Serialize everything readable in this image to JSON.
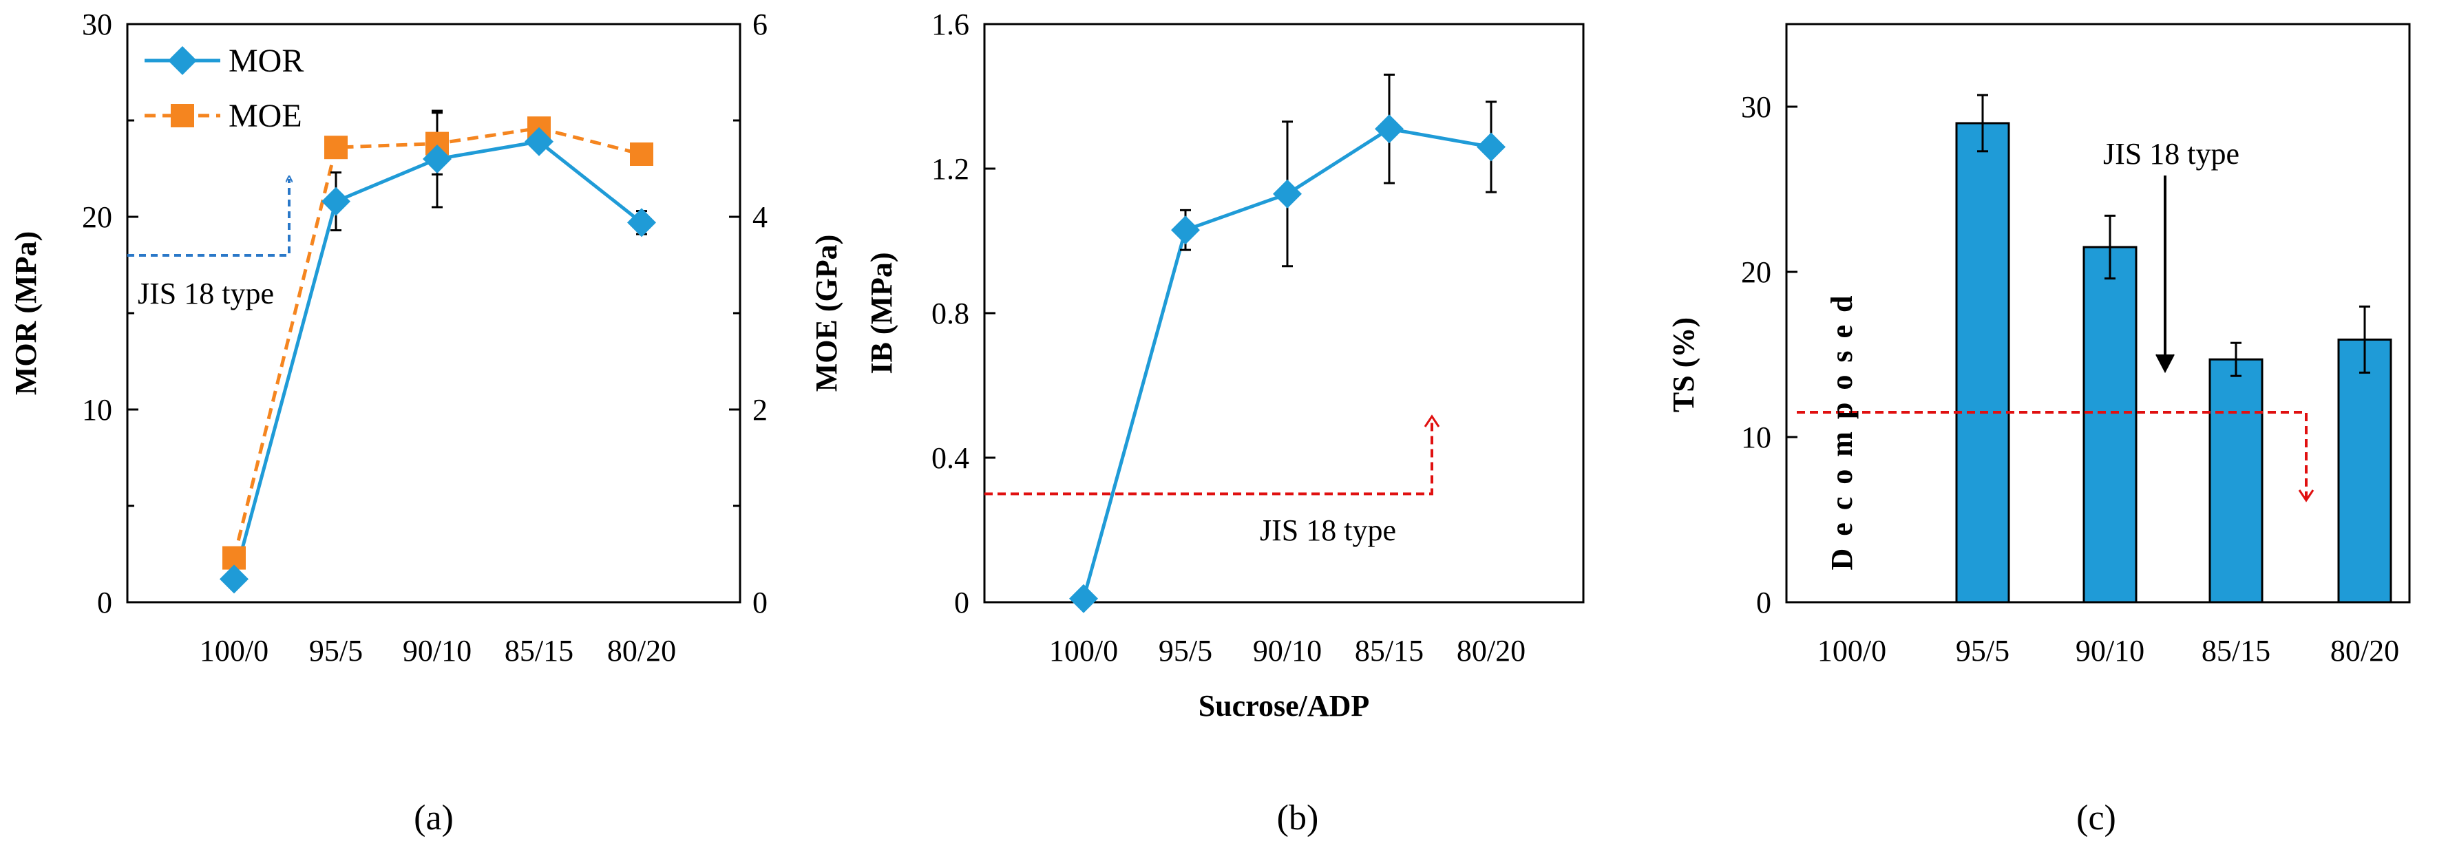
{
  "colors": {
    "mor": "#1f9bd7",
    "moe": "#f5851f",
    "bar": "#1f9bd7",
    "jis_blue": "#2a78c8",
    "jis_red": "#e01010",
    "arrow_black": "#000000"
  },
  "chart_data": [
    {
      "type": "line",
      "panel_label": "(a)",
      "categories": [
        "100/0",
        "95/5",
        "90/10",
        "85/15",
        "80/20"
      ],
      "series": [
        {
          "name": "MOR",
          "axis": "left",
          "values": [
            1.2,
            20.8,
            23.0,
            23.9,
            19.7
          ],
          "errors": [
            0,
            1.5,
            2.5,
            0,
            0.6
          ],
          "marker": "diamond",
          "line": "solid"
        },
        {
          "name": "MOE",
          "axis": "right",
          "values": [
            0.46,
            4.72,
            4.76,
            4.92,
            4.65
          ],
          "errors": [
            0,
            0.08,
            0.32,
            0,
            0
          ],
          "marker": "square",
          "line": "dashed"
        }
      ],
      "ylabel_left": "MOR (MPa)",
      "ylabel_right": "MOE (GPa)",
      "ylim_left": [
        0,
        30
      ],
      "ylim_right": [
        0,
        6
      ],
      "yticks_left": [
        "0",
        "10",
        "20",
        "30"
      ],
      "yticks_right": [
        "0",
        "2",
        "4",
        "6"
      ],
      "threshold": {
        "label": "JIS 18 type",
        "value": 18,
        "axis": "left"
      }
    },
    {
      "type": "line",
      "panel_label": "(b)",
      "categories": [
        "100/0",
        "95/5",
        "90/10",
        "85/15",
        "80/20"
      ],
      "series": [
        {
          "name": "IB",
          "values": [
            0.01,
            1.03,
            1.13,
            1.31,
            1.26
          ],
          "errors": [
            0,
            0.055,
            0.2,
            0.15,
            0.125
          ],
          "marker": "diamond",
          "line": "solid"
        }
      ],
      "xlabel": "Sucrose/ADP",
      "ylabel": "IB (MPa)",
      "ylim": [
        0,
        1.6
      ],
      "yticks": [
        "0",
        "0.4",
        "0.8",
        "1.2",
        "1.6"
      ],
      "threshold": {
        "label": "JIS 18 type",
        "value": 0.3
      }
    },
    {
      "type": "bar",
      "panel_label": "(c)",
      "categories": [
        "100/0",
        "95/5",
        "90/10",
        "85/15",
        "80/20"
      ],
      "values": [
        null,
        29.0,
        21.5,
        14.7,
        15.9
      ],
      "errors": [
        0,
        1.7,
        1.9,
        1.0,
        2.0
      ],
      "ylabel": "TS (%)",
      "ylim": [
        0,
        35
      ],
      "yticks": [
        "0",
        "10",
        "20",
        "30"
      ],
      "annotation": "Decomposed",
      "threshold": {
        "label": "JIS 18 type",
        "value": 11.5
      }
    }
  ]
}
